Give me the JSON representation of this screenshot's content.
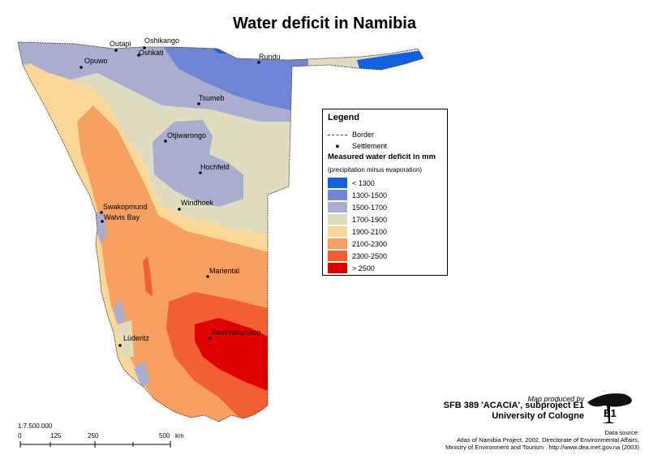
{
  "title": "Water deficit in Namibia",
  "settlements": [
    {
      "name": "Outapi"
    },
    {
      "name": "Oshikango"
    },
    {
      "name": "Oshkati"
    },
    {
      "name": "Rundu"
    },
    {
      "name": "Opuwo"
    },
    {
      "name": "Tsumeb"
    },
    {
      "name": "Otjiwarongo"
    },
    {
      "name": "Hochfeld"
    },
    {
      "name": "Swakopmund"
    },
    {
      "name": "Walvis Bay"
    },
    {
      "name": "Windhoek"
    },
    {
      "name": "Mariental"
    },
    {
      "name": "Keetmanshoop"
    },
    {
      "name": "Lüderitz"
    }
  ],
  "legend": {
    "title": "Legend",
    "border_label": "Border",
    "settlement_label": "Settlement",
    "subheading": "Measured water deficit in mm",
    "subnote": "(precipitation minus evaporation)",
    "classes": [
      {
        "label": "< 1300",
        "color": "#1060e0"
      },
      {
        "label": "1300-1500",
        "color": "#6f86d6"
      },
      {
        "label": "1500-1700",
        "color": "#a9aed0"
      },
      {
        "label": "1700-1900",
        "color": "#e0dcc0"
      },
      {
        "label": "1900-2100",
        "color": "#fcd898"
      },
      {
        "label": "2100-2300",
        "color": "#f7a060"
      },
      {
        "label": "2300-2500",
        "color": "#f06030"
      },
      {
        "label": "> 2500",
        "color": "#e00000"
      }
    ]
  },
  "scale": {
    "ratio": "1:7.500.000",
    "ticks": [
      "0",
      "125",
      "250",
      "500"
    ],
    "unit": "km"
  },
  "credits": {
    "produced_by": "Map produced by",
    "project": "SFB 389 'ACACIA', subproject E1",
    "university": "University of Cologne",
    "logo_text": "E1",
    "source_head": "Data source:",
    "source_line1": "Atlas of Namibia Project, 2002, Directorate of Environmental Affairs,",
    "source_line2": "Ministry of Environment and Tourism . http://www.dea.met.gov.na (2003)"
  }
}
